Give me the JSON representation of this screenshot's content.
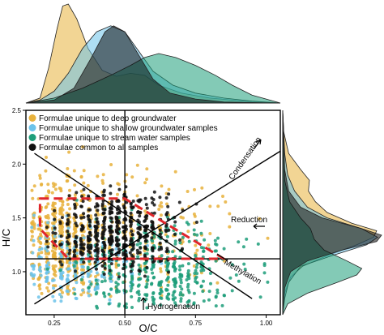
{
  "chart_data": {
    "type": "scatter",
    "title": "",
    "xlabel": "O/C",
    "ylabel": "H/C",
    "xlim": [
      0.15,
      1.05
    ],
    "ylim": [
      0.6,
      2.5
    ],
    "x_ticks": [
      "0.25",
      "0.50",
      "0.75",
      "1.00"
    ],
    "y_ticks": [
      "1.0",
      "1.5",
      "2.0",
      "2.5"
    ],
    "legend_placement": "top-left",
    "grid": false,
    "series": [
      {
        "name": "Formulae unique to deep groundwater",
        "color": "#e8b23c"
      },
      {
        "name": "Formulae unique to shallow groundwater samples",
        "color": "#6cc3ea"
      },
      {
        "name": "Formulae unique to stream water samples",
        "color": "#1d9e7a"
      },
      {
        "name": "Formulae common to all samples",
        "color": "#111111"
      }
    ],
    "clusters": [
      {
        "series": 0,
        "center": [
          0.28,
          1.25
        ],
        "spread": [
          0.09,
          0.28
        ],
        "count": 520,
        "extent": [
          [
            0.16,
            1.02
          ],
          [
            0.75,
            2.2
          ]
        ]
      },
      {
        "series": 0,
        "center": [
          0.5,
          1.35
        ],
        "spread": [
          0.18,
          0.3
        ],
        "count": 260,
        "extent": [
          [
            0.18,
            1.02
          ],
          [
            0.75,
            2.2
          ]
        ]
      },
      {
        "series": 1,
        "center": [
          0.3,
          1.05
        ],
        "spread": [
          0.12,
          0.2
        ],
        "count": 220,
        "extent": [
          [
            0.16,
            1.0
          ],
          [
            0.7,
            2.0
          ]
        ]
      },
      {
        "series": 2,
        "center": [
          0.62,
          1.0
        ],
        "spread": [
          0.14,
          0.22
        ],
        "count": 420,
        "extent": [
          [
            0.2,
            1.02
          ],
          [
            0.65,
            2.0
          ]
        ]
      },
      {
        "series": 3,
        "center": [
          0.45,
          1.35
        ],
        "spread": [
          0.11,
          0.2
        ],
        "count": 520,
        "extent": [
          [
            0.22,
            0.78
          ],
          [
            0.95,
            1.8
          ]
        ]
      }
    ],
    "reference_lines": [
      {
        "from": [
          0.5,
          0.6
        ],
        "to": [
          0.5,
          2.5
        ]
      },
      {
        "from": [
          0.15,
          1.12
        ],
        "to": [
          1.05,
          1.12
        ]
      },
      {
        "from": [
          0.18,
          2.1
        ],
        "to": [
          0.95,
          0.75
        ]
      },
      {
        "from": [
          0.18,
          0.7
        ],
        "to": [
          1.05,
          2.12
        ]
      }
    ],
    "boundary_polygon": [
      [
        0.2,
        1.68
      ],
      [
        0.5,
        1.68
      ],
      [
        0.85,
        1.12
      ],
      [
        0.3,
        1.12
      ],
      [
        0.2,
        1.4
      ]
    ],
    "annotations": [
      {
        "text": "Condensation",
        "angle": -55
      },
      {
        "text": "Reduction",
        "arrow": "left"
      },
      {
        "text": "Methylation",
        "angle": 30
      },
      {
        "text": "Hydrogenation",
        "arrow": "up"
      }
    ],
    "top_density": {
      "axis": "O/C",
      "curves": [
        {
          "series": 0,
          "points": [
            [
              0.15,
              0.0
            ],
            [
              0.2,
              0.05
            ],
            [
              0.23,
              0.35
            ],
            [
              0.26,
              0.75
            ],
            [
              0.28,
              0.98
            ],
            [
              0.3,
              1.0
            ],
            [
              0.33,
              0.85
            ],
            [
              0.37,
              0.55
            ],
            [
              0.42,
              0.33
            ],
            [
              0.47,
              0.27
            ],
            [
              0.52,
              0.3
            ],
            [
              0.57,
              0.28
            ],
            [
              0.62,
              0.18
            ],
            [
              0.7,
              0.1
            ],
            [
              0.8,
              0.05
            ],
            [
              0.92,
              0.02
            ],
            [
              1.05,
              0.0
            ]
          ]
        },
        {
          "series": 1,
          "points": [
            [
              0.15,
              0.0
            ],
            [
              0.2,
              0.03
            ],
            [
              0.25,
              0.12
            ],
            [
              0.3,
              0.3
            ],
            [
              0.35,
              0.55
            ],
            [
              0.4,
              0.72
            ],
            [
              0.45,
              0.78
            ],
            [
              0.5,
              0.72
            ],
            [
              0.55,
              0.52
            ],
            [
              0.6,
              0.32
            ],
            [
              0.67,
              0.18
            ],
            [
              0.75,
              0.1
            ],
            [
              0.85,
              0.05
            ],
            [
              0.95,
              0.02
            ],
            [
              1.05,
              0.0
            ]
          ]
        },
        {
          "series": 2,
          "points": [
            [
              0.15,
              0.0
            ],
            [
              0.25,
              0.05
            ],
            [
              0.35,
              0.15
            ],
            [
              0.45,
              0.28
            ],
            [
              0.52,
              0.38
            ],
            [
              0.57,
              0.46
            ],
            [
              0.62,
              0.5
            ],
            [
              0.68,
              0.46
            ],
            [
              0.75,
              0.38
            ],
            [
              0.82,
              0.28
            ],
            [
              0.88,
              0.18
            ],
            [
              0.95,
              0.08
            ],
            [
              1.05,
              0.0
            ]
          ]
        },
        {
          "series": 3,
          "points": [
            [
              0.15,
              0.0
            ],
            [
              0.25,
              0.03
            ],
            [
              0.32,
              0.15
            ],
            [
              0.38,
              0.45
            ],
            [
              0.43,
              0.72
            ],
            [
              0.46,
              0.78
            ],
            [
              0.5,
              0.72
            ],
            [
              0.55,
              0.48
            ],
            [
              0.6,
              0.24
            ],
            [
              0.66,
              0.1
            ],
            [
              0.75,
              0.04
            ],
            [
              0.85,
              0.01
            ],
            [
              1.05,
              0.0
            ]
          ]
        }
      ]
    },
    "right_density": {
      "axis": "H/C",
      "curves": [
        {
          "series": 0,
          "points": [
            [
              0.6,
              0.0
            ],
            [
              0.8,
              0.02
            ],
            [
              0.95,
              0.08
            ],
            [
              1.05,
              0.2
            ],
            [
              1.15,
              0.45
            ],
            [
              1.25,
              0.75
            ],
            [
              1.32,
              0.92
            ],
            [
              1.38,
              0.95
            ],
            [
              1.45,
              0.7
            ],
            [
              1.55,
              0.45
            ],
            [
              1.65,
              0.33
            ],
            [
              1.75,
              0.26
            ],
            [
              1.85,
              0.27
            ],
            [
              1.95,
              0.18
            ],
            [
              2.1,
              0.06
            ],
            [
              2.3,
              0.01
            ],
            [
              2.5,
              0.0
            ]
          ]
        },
        {
          "series": 1,
          "points": [
            [
              0.6,
              0.0
            ],
            [
              0.75,
              0.02
            ],
            [
              0.9,
              0.06
            ],
            [
              1.05,
              0.18
            ],
            [
              1.15,
              0.5
            ],
            [
              1.25,
              0.85
            ],
            [
              1.32,
              0.96
            ],
            [
              1.4,
              0.8
            ],
            [
              1.5,
              0.45
            ],
            [
              1.6,
              0.25
            ],
            [
              1.75,
              0.12
            ],
            [
              1.9,
              0.05
            ],
            [
              2.1,
              0.02
            ],
            [
              2.5,
              0.0
            ]
          ]
        },
        {
          "series": 2,
          "points": [
            [
              0.6,
              0.0
            ],
            [
              0.7,
              0.05
            ],
            [
              0.8,
              0.25
            ],
            [
              0.9,
              0.55
            ],
            [
              0.97,
              0.75
            ],
            [
              1.03,
              0.8
            ],
            [
              1.1,
              0.65
            ],
            [
              1.2,
              0.42
            ],
            [
              1.3,
              0.32
            ],
            [
              1.4,
              0.28
            ],
            [
              1.5,
              0.18
            ],
            [
              1.65,
              0.07
            ],
            [
              1.85,
              0.02
            ],
            [
              2.5,
              0.0
            ]
          ]
        },
        {
          "series": 3,
          "points": [
            [
              0.6,
              0.0
            ],
            [
              0.85,
              0.02
            ],
            [
              1.0,
              0.08
            ],
            [
              1.1,
              0.25
            ],
            [
              1.2,
              0.6
            ],
            [
              1.28,
              0.95
            ],
            [
              1.34,
              1.0
            ],
            [
              1.4,
              0.8
            ],
            [
              1.5,
              0.4
            ],
            [
              1.6,
              0.18
            ],
            [
              1.75,
              0.06
            ],
            [
              1.95,
              0.02
            ],
            [
              2.5,
              0.0
            ]
          ]
        }
      ]
    }
  }
}
